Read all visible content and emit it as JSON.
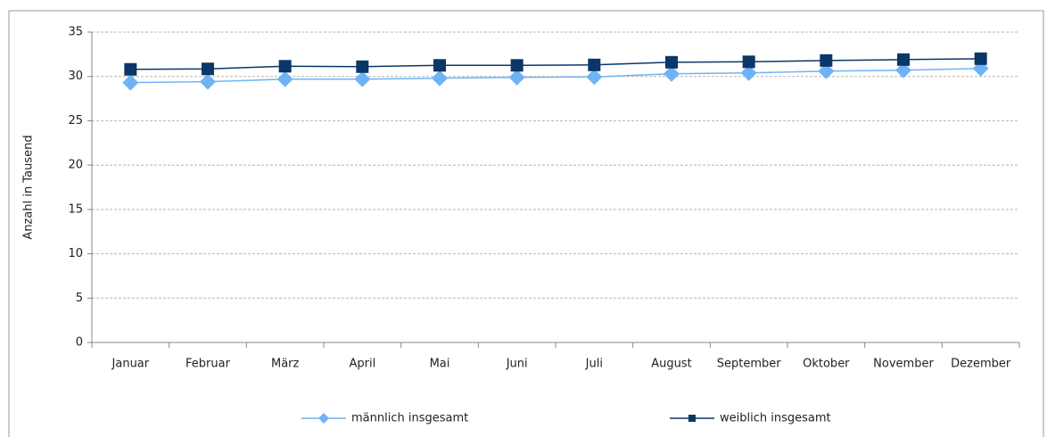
{
  "chart_data": {
    "type": "line",
    "y_axis_label": "Anzahl in Tausend",
    "categories": [
      "Januar",
      "Februar",
      "März",
      "April",
      "Mai",
      "Juni",
      "Juli",
      "August",
      "September",
      "Oktober",
      "November",
      "Dezember"
    ],
    "series": [
      {
        "name": "männlich insgesamt",
        "color": "#6fb3f5",
        "marker": "diamond",
        "values": [
          29.3,
          29.4,
          29.7,
          29.7,
          29.8,
          29.9,
          29.95,
          30.3,
          30.4,
          30.6,
          30.7,
          30.9
        ]
      },
      {
        "name": "weiblich insgesamt",
        "color": "#0b3668",
        "marker": "square",
        "values": [
          30.8,
          30.85,
          31.15,
          31.1,
          31.25,
          31.25,
          31.3,
          31.6,
          31.65,
          31.8,
          31.9,
          32.0
        ]
      }
    ],
    "ylim": [
      0,
      35
    ],
    "yticks": [
      0,
      5,
      10,
      15,
      20,
      25,
      30,
      35
    ],
    "grid": true
  }
}
